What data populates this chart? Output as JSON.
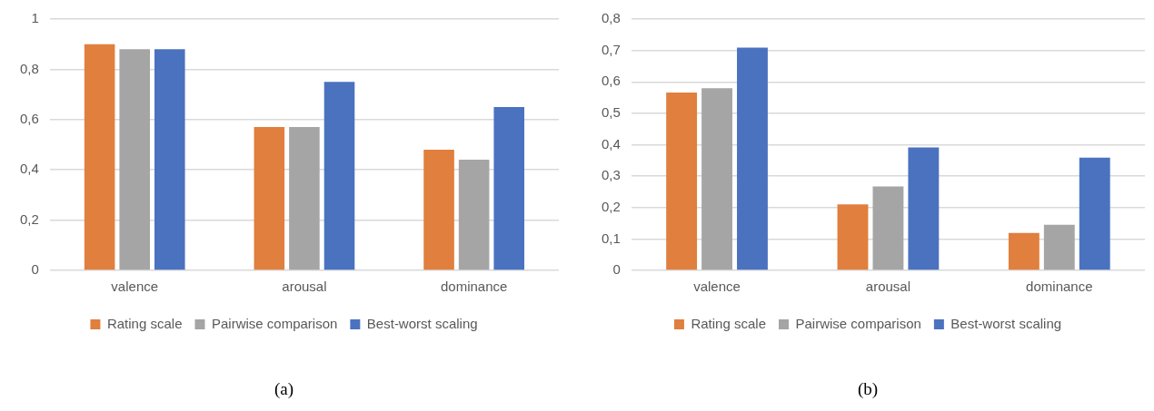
{
  "chart_data": [
    {
      "type": "bar",
      "categories": [
        "valence",
        "arousal",
        "dominance"
      ],
      "series": [
        {
          "name": "Rating scale",
          "color": "#e07f3e",
          "values": [
            0.9,
            0.57,
            0.48
          ]
        },
        {
          "name": "Pairwise comparison",
          "color": "#a5a5a5",
          "values": [
            0.88,
            0.57,
            0.44
          ]
        },
        {
          "name": "Best-worst scaling",
          "color": "#4a72bf",
          "values": [
            0.88,
            0.75,
            0.65
          ]
        }
      ],
      "ylim": [
        0,
        1
      ],
      "yticks": [
        {
          "value": 0,
          "label": "0"
        },
        {
          "value": 0.2,
          "label": "0,2"
        },
        {
          "value": 0.4,
          "label": "0,4"
        },
        {
          "value": 0.6,
          "label": "0,6"
        },
        {
          "value": 0.8,
          "label": "0,8"
        },
        {
          "value": 1,
          "label": "1"
        }
      ],
      "grid": "y",
      "legend": "bottom",
      "annotations": [
        "(a)"
      ]
    },
    {
      "type": "bar",
      "categories": [
        "valence",
        "arousal",
        "dominance"
      ],
      "series": [
        {
          "name": "Rating scale",
          "color": "#e07f3e",
          "values": [
            0.566,
            0.21,
            0.119
          ]
        },
        {
          "name": "Pairwise comparison",
          "color": "#a5a5a5",
          "values": [
            0.58,
            0.267,
            0.145
          ]
        },
        {
          "name": "Best-worst scaling",
          "color": "#4a72bf",
          "values": [
            0.709,
            0.391,
            0.359
          ]
        }
      ],
      "ylim": [
        0,
        0.8
      ],
      "yticks": [
        {
          "value": 0,
          "label": "0"
        },
        {
          "value": 0.1,
          "label": "0,1"
        },
        {
          "value": 0.2,
          "label": "0,2"
        },
        {
          "value": 0.3,
          "label": "0,3"
        },
        {
          "value": 0.4,
          "label": "0,4"
        },
        {
          "value": 0.5,
          "label": "0,5"
        },
        {
          "value": 0.6,
          "label": "0,6"
        },
        {
          "value": 0.7,
          "label": "0,7"
        },
        {
          "value": 0.8,
          "label": "0,8"
        }
      ],
      "grid": "y",
      "legend": "bottom",
      "annotations": [
        "(b)"
      ]
    }
  ]
}
